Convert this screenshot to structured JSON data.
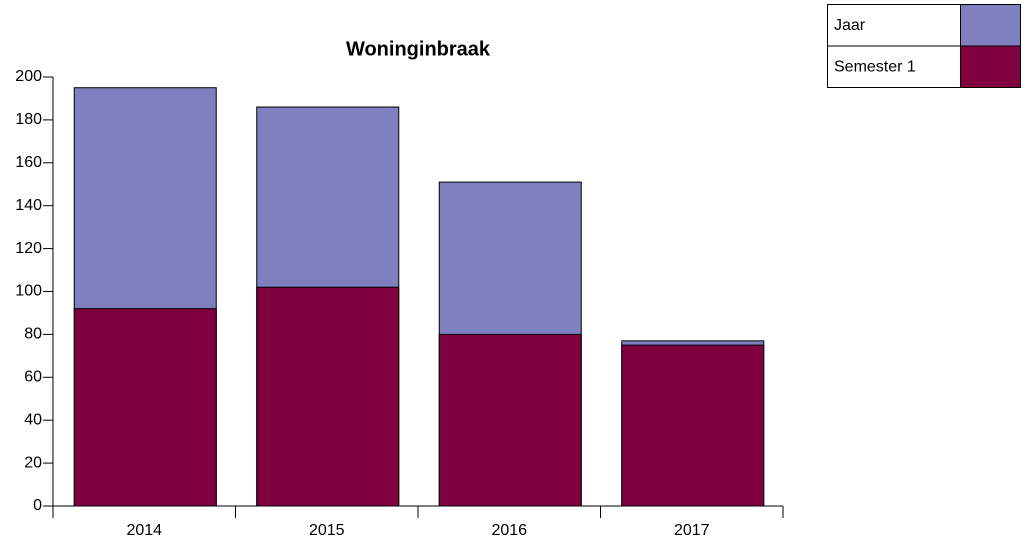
{
  "chart_data": {
    "type": "bar",
    "title": "Woninginbraak",
    "categories": [
      "2014",
      "2015",
      "2016",
      "2017"
    ],
    "series": [
      {
        "name": "Jaar",
        "color": "#8080c0",
        "values": [
          195,
          186,
          151,
          77
        ]
      },
      {
        "name": "Semester 1",
        "color": "#800040",
        "values": [
          92,
          102,
          80,
          75
        ]
      }
    ],
    "ylim": [
      0,
      200
    ],
    "yticks": [
      0,
      20,
      40,
      60,
      80,
      100,
      120,
      140,
      160,
      180,
      200
    ],
    "legend": "top-right"
  }
}
